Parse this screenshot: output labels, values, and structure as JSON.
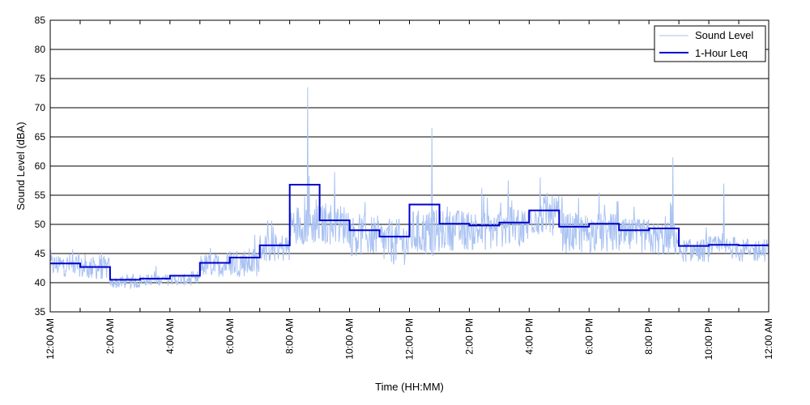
{
  "chart_data": {
    "type": "line",
    "title": "",
    "xlabel": "Time (HH:MM)",
    "ylabel": "Sound Level (dBA)",
    "ylim": [
      35,
      85
    ],
    "yticks": [
      35,
      40,
      45,
      50,
      55,
      60,
      65,
      70,
      75,
      80,
      85
    ],
    "xlim_hours": [
      0,
      24
    ],
    "xtick_labels": [
      "12:00 AM",
      "2:00 AM",
      "4:00 AM",
      "6:00 AM",
      "8:00 AM",
      "10:00 AM",
      "12:00 PM",
      "2:00 PM",
      "4:00 PM",
      "6:00 PM",
      "8:00 PM",
      "10:00 PM",
      "12:00 AM"
    ],
    "grid": "horizontal",
    "legend_position": "top-right",
    "colors": {
      "sound_level": "#a9c2f2",
      "leq": "#0000cc"
    },
    "series": [
      {
        "name": "Sound Level",
        "hourly_base": [
          43.0,
          42.5,
          40.0,
          40.5,
          40.5,
          43.0,
          43.5,
          46.0,
          50.0,
          50.0,
          48.0,
          47.0,
          48.5,
          49.0,
          49.0,
          49.5,
          51.5,
          48.5,
          48.5,
          48.0,
          47.5,
          45.5,
          46.0,
          45.5
        ],
        "hourly_spread": [
          2.0,
          2.0,
          1.0,
          1.0,
          1.0,
          2.0,
          2.5,
          2.5,
          3.5,
          3.5,
          3.5,
          4.0,
          4.0,
          3.5,
          3.5,
          3.5,
          3.5,
          3.5,
          3.5,
          3.0,
          3.0,
          2.0,
          2.0,
          2.0
        ],
        "peaks": [
          {
            "x_hours": 8.6,
            "y": 73.5
          },
          {
            "x_hours": 12.75,
            "y": 66.5
          },
          {
            "x_hours": 20.8,
            "y": 61.5
          },
          {
            "x_hours": 9.5,
            "y": 59.0
          },
          {
            "x_hours": 22.5,
            "y": 57.0
          },
          {
            "x_hours": 15.3,
            "y": 57.5
          }
        ]
      },
      {
        "name": "1-Hour Leq",
        "step": "post",
        "x_hours": [
          0,
          1,
          2,
          3,
          4,
          5,
          6,
          7,
          8,
          9,
          10,
          11,
          12,
          13,
          14,
          15,
          16,
          17,
          18,
          19,
          20,
          21,
          22,
          23
        ],
        "values": [
          43.3,
          42.7,
          40.5,
          40.7,
          41.2,
          43.4,
          44.3,
          46.4,
          56.8,
          50.7,
          49.0,
          47.9,
          53.4,
          50.1,
          49.8,
          50.3,
          52.4,
          49.6,
          50.1,
          49.0,
          49.3,
          46.3,
          46.5,
          46.4
        ]
      }
    ]
  }
}
